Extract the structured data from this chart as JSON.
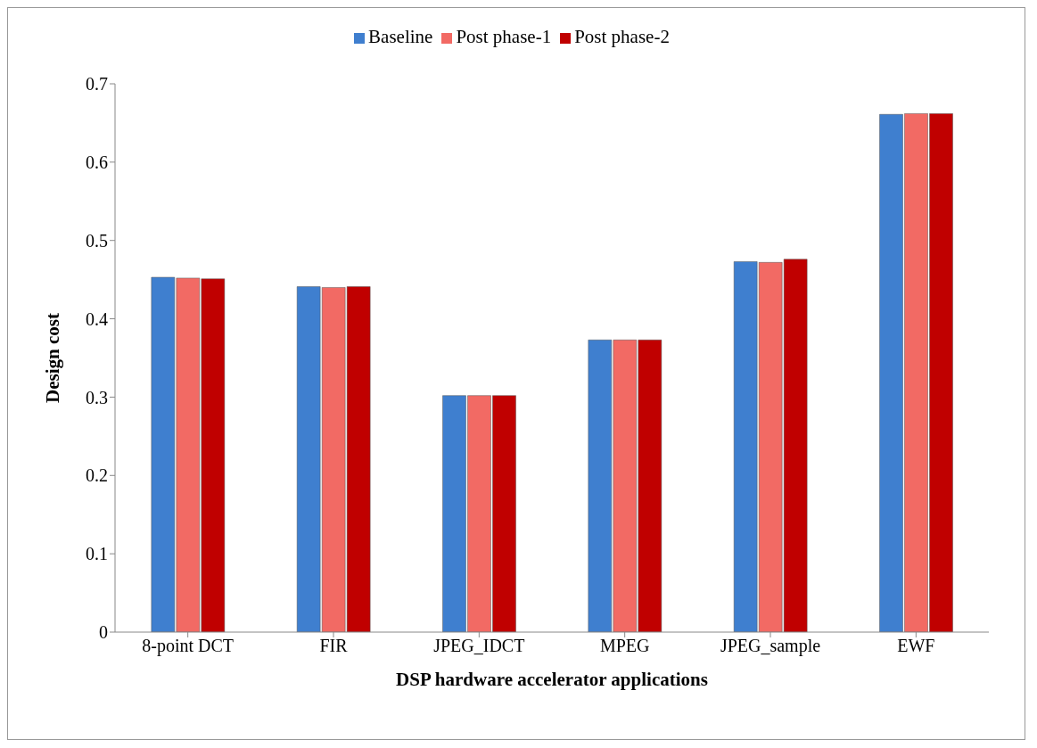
{
  "chart_data": {
    "type": "bar",
    "xlabel": "DSP hardware accelerator applications",
    "ylabel": "Design cost",
    "categories": [
      "8-point DCT",
      "FIR",
      "JPEG_IDCT",
      "MPEG",
      "JPEG_sample",
      "EWF"
    ],
    "series": [
      {
        "name": "Baseline",
        "color": "#3f7fcf",
        "values": [
          0.453,
          0.441,
          0.302,
          0.373,
          0.473,
          0.661
        ]
      },
      {
        "name": "Post phase-1",
        "color": "#f26a64",
        "values": [
          0.452,
          0.44,
          0.302,
          0.373,
          0.472,
          0.662
        ]
      },
      {
        "name": "Post phase-2",
        "color": "#c00000",
        "values": [
          0.451,
          0.441,
          0.302,
          0.373,
          0.476,
          0.662
        ]
      }
    ],
    "ylim": [
      0,
      0.7
    ],
    "yticks": [
      0,
      0.1,
      0.2,
      0.3,
      0.4,
      0.5,
      0.6,
      0.7
    ],
    "grid": false,
    "legend": "top"
  }
}
